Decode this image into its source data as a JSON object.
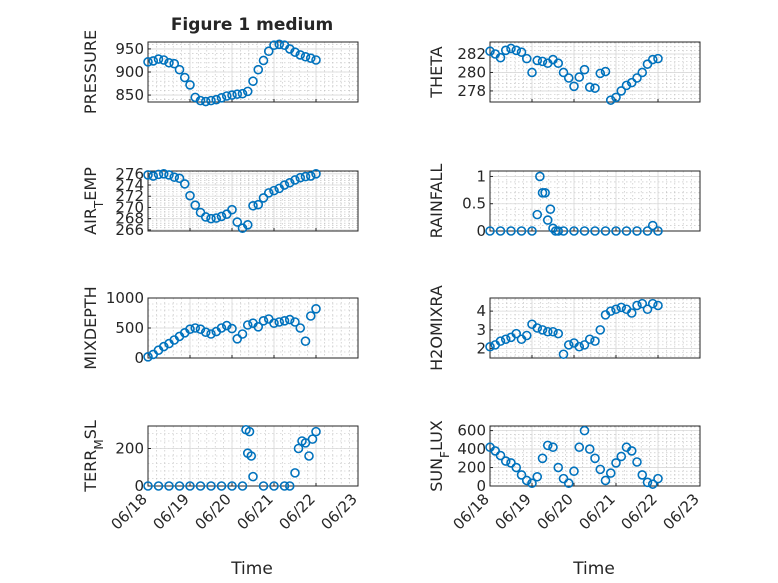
{
  "figure": {
    "xlabel": "Time",
    "colors": {
      "marker": "#0072BD",
      "axis": "#262626",
      "grid": "#d9d9d9"
    }
  },
  "chart_data": [
    {
      "type": "scatter",
      "title": "Figure 1 medium",
      "ylabel": "PRESSURE",
      "xlim": [
        "06/18",
        "06/23"
      ],
      "show_xticklabels": false,
      "ylim": [
        835,
        965
      ],
      "yticks": [
        850,
        900,
        950
      ],
      "grid": true,
      "minor_grid": true,
      "x": [
        "06/18",
        "06/18 03:00",
        "06/18 06:00",
        "06/18 09:00",
        "06/18 12:00",
        "06/18 15:00",
        "06/18 18:00",
        "06/18 21:00",
        "06/19",
        "06/19 03:00",
        "06/19 06:00",
        "06/19 09:00",
        "06/19 12:00",
        "06/19 15:00",
        "06/19 18:00",
        "06/19 21:00",
        "06/20",
        "06/20 03:00",
        "06/20 06:00",
        "06/20 09:00",
        "06/20 12:00",
        "06/20 15:00",
        "06/20 18:00",
        "06/20 21:00",
        "06/21",
        "06/21 03:00",
        "06/21 06:00",
        "06/21 09:00",
        "06/21 12:00",
        "06/21 15:00",
        "06/21 18:00",
        "06/21 21:00",
        "06/22"
      ],
      "y": [
        922,
        924,
        928,
        926,
        920,
        918,
        905,
        888,
        872,
        845,
        838,
        836,
        838,
        840,
        844,
        848,
        850,
        852,
        853,
        858,
        880,
        905,
        925,
        945,
        958,
        960,
        958,
        950,
        943,
        937,
        933,
        930,
        926
      ]
    },
    {
      "type": "scatter",
      "ylabel": "THETA",
      "xlim": [
        "06/18",
        "06/23"
      ],
      "show_xticklabels": false,
      "ylim": [
        276.8,
        283.3
      ],
      "yticks": [
        278,
        280,
        282
      ],
      "grid": true,
      "minor_grid": true,
      "x": [
        "06/18",
        "06/18 03:00",
        "06/18 06:00",
        "06/18 09:00",
        "06/18 12:00",
        "06/18 15:00",
        "06/18 18:00",
        "06/18 21:00",
        "06/19",
        "06/19 03:00",
        "06/19 06:00",
        "06/19 09:00",
        "06/19 12:00",
        "06/19 15:00",
        "06/19 18:00",
        "06/19 21:00",
        "06/20",
        "06/20 03:00",
        "06/20 06:00",
        "06/20 09:00",
        "06/20 12:00",
        "06/20 15:00",
        "06/20 18:00",
        "06/20 21:00",
        "06/21",
        "06/21 03:00",
        "06/21 06:00",
        "06/21 09:00",
        "06/21 12:00",
        "06/21 15:00",
        "06/21 18:00",
        "06/21 21:00",
        "06/22"
      ],
      "y": [
        282.3,
        282.0,
        281.6,
        282.4,
        282.6,
        282.4,
        282.2,
        281.5,
        280.0,
        281.3,
        281.2,
        281.0,
        281.4,
        281.0,
        280.0,
        279.4,
        278.5,
        279.5,
        280.3,
        278.4,
        278.3,
        279.9,
        280.1,
        277.0,
        277.3,
        278.0,
        278.6,
        278.9,
        279.4,
        280.0,
        280.9,
        281.4,
        281.5
      ]
    },
    {
      "type": "scatter",
      "ylabel": "AIR_TEMP",
      "xlim": [
        "06/18",
        "06/23"
      ],
      "show_xticklabels": false,
      "ylim": [
        265.8,
        276.5
      ],
      "yticks": [
        266,
        268,
        270,
        272,
        274,
        276
      ],
      "grid": true,
      "minor_grid": true,
      "x": [
        "06/18",
        "06/18 03:00",
        "06/18 06:00",
        "06/18 09:00",
        "06/18 12:00",
        "06/18 15:00",
        "06/18 18:00",
        "06/18 21:00",
        "06/19",
        "06/19 03:00",
        "06/19 06:00",
        "06/19 09:00",
        "06/19 12:00",
        "06/19 15:00",
        "06/19 18:00",
        "06/19 21:00",
        "06/20",
        "06/20 03:00",
        "06/20 06:00",
        "06/20 09:00",
        "06/20 12:00",
        "06/20 15:00",
        "06/20 18:00",
        "06/20 21:00",
        "06/21",
        "06/21 03:00",
        "06/21 06:00",
        "06/21 09:00",
        "06/21 12:00",
        "06/21 15:00",
        "06/21 18:00",
        "06/21 21:00",
        "06/22"
      ],
      "y": [
        275.8,
        275.6,
        275.9,
        276.0,
        275.8,
        275.4,
        275.2,
        274.2,
        272.1,
        270.4,
        269.1,
        268.3,
        268.0,
        268.1,
        268.4,
        268.8,
        269.6,
        267.4,
        266.3,
        266.9,
        270.3,
        270.5,
        271.7,
        272.6,
        273.0,
        273.4,
        274.0,
        274.4,
        274.9,
        275.3,
        275.5,
        275.6,
        276.0
      ]
    },
    {
      "type": "scatter",
      "ylabel": "RAINFALL",
      "xlim": [
        "06/18",
        "06/23"
      ],
      "show_xticklabels": false,
      "ylim": [
        0,
        1.1
      ],
      "yticks": [
        0,
        0.5,
        1
      ],
      "grid": true,
      "minor_grid": true,
      "x": [
        "06/18",
        "06/18 06:00",
        "06/18 12:00",
        "06/18 18:00",
        "06/19",
        "06/19 03:00",
        "06/19 04:30",
        "06/19 06:00",
        "06/19 07:30",
        "06/19 09:00",
        "06/19 10:30",
        "06/19 12:00",
        "06/19 13:30",
        "06/19 15:00",
        "06/19 18:00",
        "06/20",
        "06/20 06:00",
        "06/20 12:00",
        "06/20 18:00",
        "06/21",
        "06/21 06:00",
        "06/21 12:00",
        "06/21 18:00",
        "06/21 21:00",
        "06/22"
      ],
      "y": [
        0,
        0,
        0,
        0,
        0,
        0.3,
        1.0,
        0.7,
        0.7,
        0.2,
        0.4,
        0.05,
        0,
        0,
        0,
        0,
        0,
        0,
        0,
        0,
        0,
        0,
        0,
        0.1,
        0
      ]
    },
    {
      "type": "scatter",
      "ylabel": "MIXDEPTH",
      "xlim": [
        "06/18",
        "06/23"
      ],
      "show_xticklabels": false,
      "ylim": [
        0,
        1000
      ],
      "yticks": [
        0,
        500,
        1000
      ],
      "grid": true,
      "minor_grid": true,
      "x": [
        "06/18",
        "06/18 03:00",
        "06/18 06:00",
        "06/18 09:00",
        "06/18 12:00",
        "06/18 15:00",
        "06/18 18:00",
        "06/18 21:00",
        "06/19",
        "06/19 03:00",
        "06/19 06:00",
        "06/19 09:00",
        "06/19 12:00",
        "06/19 15:00",
        "06/19 18:00",
        "06/19 21:00",
        "06/20",
        "06/20 03:00",
        "06/20 06:00",
        "06/20 09:00",
        "06/20 12:00",
        "06/20 15:00",
        "06/20 18:00",
        "06/20 21:00",
        "06/21",
        "06/21 03:00",
        "06/21 06:00",
        "06/21 09:00",
        "06/21 12:00",
        "06/21 15:00",
        "06/21 18:00",
        "06/21 21:00",
        "06/22"
      ],
      "y": [
        20,
        60,
        130,
        190,
        240,
        300,
        360,
        420,
        480,
        500,
        480,
        430,
        400,
        440,
        500,
        540,
        490,
        320,
        400,
        550,
        580,
        520,
        620,
        650,
        580,
        600,
        620,
        640,
        600,
        500,
        280,
        700,
        820
      ]
    },
    {
      "type": "scatter",
      "ylabel": "H2OMIXRA",
      "xlim": [
        "06/18",
        "06/23"
      ],
      "show_xticklabels": false,
      "ylim": [
        1.5,
        4.7
      ],
      "yticks": [
        2,
        3,
        4
      ],
      "grid": true,
      "minor_grid": true,
      "x": [
        "06/18",
        "06/18 03:00",
        "06/18 06:00",
        "06/18 09:00",
        "06/18 12:00",
        "06/18 15:00",
        "06/18 18:00",
        "06/18 21:00",
        "06/19",
        "06/19 03:00",
        "06/19 06:00",
        "06/19 09:00",
        "06/19 12:00",
        "06/19 15:00",
        "06/19 18:00",
        "06/19 21:00",
        "06/20",
        "06/20 03:00",
        "06/20 06:00",
        "06/20 09:00",
        "06/20 12:00",
        "06/20 15:00",
        "06/20 18:00",
        "06/20 21:00",
        "06/21",
        "06/21 03:00",
        "06/21 06:00",
        "06/21 09:00",
        "06/21 12:00",
        "06/21 15:00",
        "06/21 18:00",
        "06/21 21:00",
        "06/22"
      ],
      "y": [
        2.1,
        2.2,
        2.4,
        2.5,
        2.6,
        2.8,
        2.5,
        2.7,
        3.3,
        3.1,
        3.0,
        2.9,
        2.9,
        2.8,
        1.7,
        2.2,
        2.3,
        2.1,
        2.2,
        2.5,
        2.4,
        3.0,
        3.8,
        4.0,
        4.1,
        4.2,
        4.1,
        3.9,
        4.3,
        4.4,
        4.1,
        4.4,
        4.3
      ]
    },
    {
      "type": "scatter",
      "ylabel": "TERR_MSL",
      "xlim": [
        "06/18",
        "06/23"
      ],
      "show_xticklabels": true,
      "xticks": [
        "06/18",
        "06/19",
        "06/20",
        "06/21",
        "06/22",
        "06/23"
      ],
      "ylim": [
        0,
        320
      ],
      "yticks": [
        0,
        200
      ],
      "grid": true,
      "minor_grid": true,
      "x": [
        "06/18",
        "06/18 06:00",
        "06/18 12:00",
        "06/18 18:00",
        "06/19",
        "06/19 06:00",
        "06/19 12:00",
        "06/19 18:00",
        "06/20",
        "06/20 06:00",
        "06/20 08:00",
        "06/20 09:00",
        "06/20 10:00",
        "06/20 11:00",
        "06/20 12:00",
        "06/20 18:00",
        "06/21",
        "06/21 06:00",
        "06/21 09:00",
        "06/21 12:00",
        "06/21 14:00",
        "06/21 16:00",
        "06/21 18:00",
        "06/21 20:00",
        "06/21 22:00",
        "06/22"
      ],
      "y": [
        0,
        0,
        0,
        0,
        0,
        0,
        0,
        0,
        0,
        0,
        300,
        175,
        290,
        160,
        50,
        0,
        0,
        0,
        0,
        70,
        200,
        240,
        230,
        160,
        250,
        290
      ]
    },
    {
      "type": "scatter",
      "ylabel": "SUN_FLUX",
      "xlim": [
        "06/18",
        "06/23"
      ],
      "show_xticklabels": true,
      "xticks": [
        "06/18",
        "06/19",
        "06/20",
        "06/21",
        "06/22",
        "06/23"
      ],
      "ylim": [
        0,
        650
      ],
      "yticks": [
        0,
        200,
        400,
        600
      ],
      "grid": true,
      "minor_grid": true,
      "x": [
        "06/18",
        "06/18 03:00",
        "06/18 06:00",
        "06/18 09:00",
        "06/18 12:00",
        "06/18 15:00",
        "06/18 18:00",
        "06/18 21:00",
        "06/19",
        "06/19 03:00",
        "06/19 06:00",
        "06/19 09:00",
        "06/19 12:00",
        "06/19 15:00",
        "06/19 18:00",
        "06/19 21:00",
        "06/20",
        "06/20 03:00",
        "06/20 06:00",
        "06/20 09:00",
        "06/20 12:00",
        "06/20 15:00",
        "06/20 18:00",
        "06/20 21:00",
        "06/21",
        "06/21 03:00",
        "06/21 06:00",
        "06/21 09:00",
        "06/21 12:00",
        "06/21 15:00",
        "06/21 18:00",
        "06/21 21:00",
        "06/22"
      ],
      "y": [
        420,
        380,
        330,
        270,
        250,
        200,
        120,
        60,
        30,
        100,
        300,
        440,
        420,
        200,
        80,
        30,
        160,
        420,
        600,
        400,
        300,
        180,
        60,
        140,
        250,
        320,
        420,
        380,
        260,
        120,
        40,
        20,
        80
      ]
    }
  ]
}
